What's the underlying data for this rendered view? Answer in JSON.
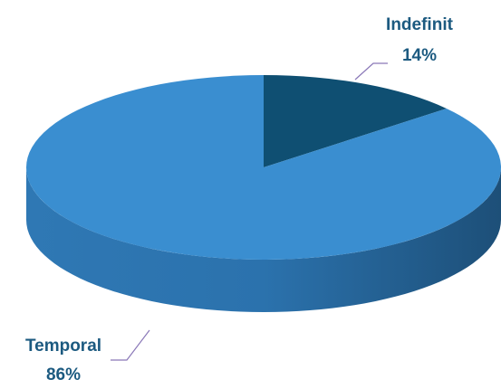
{
  "chart_data": {
    "type": "pie",
    "categories": [
      "Indefinit",
      "Temporal"
    ],
    "values": [
      14,
      86
    ],
    "value_labels": [
      "14%",
      "86%"
    ],
    "colors": [
      "#0f4f72",
      "#3a8ed0"
    ],
    "label_color": "#1c5a80",
    "leader_color": "#8a78b8"
  }
}
